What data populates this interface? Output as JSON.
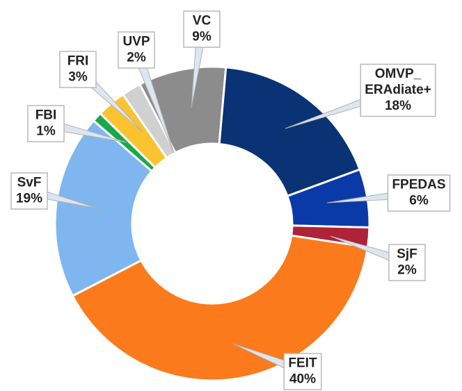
{
  "chart_data": {
    "type": "pie",
    "categories": [
      "OMVP_ERAdiate+",
      "FPEDAS",
      "SjF",
      "FEIT",
      "SvF",
      "FBI",
      "FRI",
      "UVP",
      "VC"
    ],
    "values": [
      18,
      6,
      2,
      40,
      19,
      1,
      3,
      2,
      9
    ],
    "value_labels": [
      "18%",
      "6%",
      "2%",
      "40%",
      "19%",
      "1%",
      "3%",
      "2%",
      "9%"
    ],
    "colors": [
      "#0a3375",
      "#0a3aa8",
      "#b0213a",
      "#fb7b1c",
      "#7fb6f0",
      "#1aa84a",
      "#fbc330",
      "#d0d0d0",
      "#8c8c8c"
    ]
  }
}
